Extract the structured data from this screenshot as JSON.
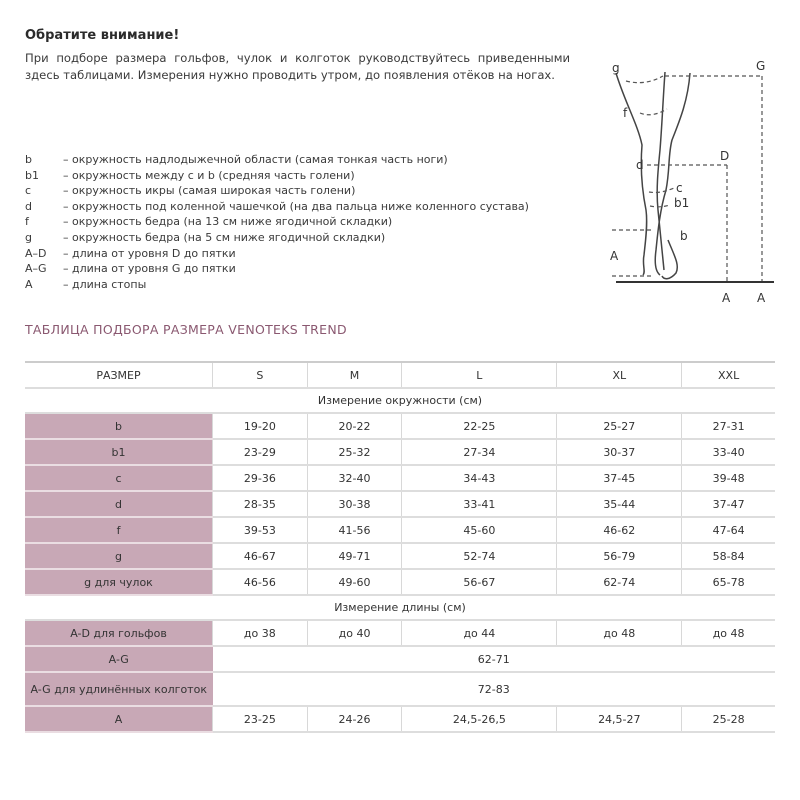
{
  "notice": {
    "title": "Обратите внимание!",
    "text": "При подборе размера гольфов, чулок и колготок руководствуйтесь приведенными здесь таблицами. Измерения нужно проводить утром, до появления отёков на ногах."
  },
  "legend": [
    {
      "key": "b",
      "text": "– окружность надлодыжечной области (самая тонкая часть ноги)"
    },
    {
      "key": "b1",
      "text": "– окружность между c и b (средняя часть голени)"
    },
    {
      "key": "c",
      "text": "– окружность икры (самая широкая часть голени)"
    },
    {
      "key": "d",
      "text": "– окружность под коленной чашечкой (на два пальца ниже коленного сустава)"
    },
    {
      "key": "f",
      "text": "– окружность бедра (на 13 см ниже ягодичной складки)"
    },
    {
      "key": "g",
      "text": "– окружность бедра (на 5 см ниже ягодичной складки)"
    },
    {
      "key": "A–D",
      "text": "– длина от уровня D до пятки"
    },
    {
      "key": "A–G",
      "text": "– длина от уровня G до пятки"
    },
    {
      "key": "A",
      "text": "– длина стопы"
    }
  ],
  "diagram": {
    "labels": {
      "g": "g",
      "f": "f",
      "d": "d",
      "c": "c",
      "b1": "b1",
      "b": "b",
      "A_left": "A",
      "D": "D",
      "G": "G",
      "A_d": "A",
      "A_g": "A"
    }
  },
  "table": {
    "title": "ТАБЛИЦА ПОДБОРА РАЗМЕРА VENOTEKS TREND",
    "colors": {
      "label_bg": "#c8a8b6",
      "title": "#8a5870"
    },
    "header": [
      "РАЗМЕР",
      "S",
      "M",
      "L",
      "XL",
      "XXL"
    ],
    "section_circumference": "Измерение окружности (см)",
    "circumference_rows": [
      {
        "label": "b",
        "values": [
          "19-20",
          "20-22",
          "22-25",
          "25-27",
          "27-31"
        ]
      },
      {
        "label": "b1",
        "values": [
          "23-29",
          "25-32",
          "27-34",
          "30-37",
          "33-40"
        ]
      },
      {
        "label": "c",
        "values": [
          "29-36",
          "32-40",
          "34-43",
          "37-45",
          "39-48"
        ]
      },
      {
        "label": "d",
        "values": [
          "28-35",
          "30-38",
          "33-41",
          "35-44",
          "37-47"
        ]
      },
      {
        "label": "f",
        "values": [
          "39-53",
          "41-56",
          "45-60",
          "46-62",
          "47-64"
        ]
      },
      {
        "label": "g",
        "values": [
          "46-67",
          "49-71",
          "52-74",
          "56-79",
          "58-84"
        ]
      },
      {
        "label": "g для чулок",
        "values": [
          "46-56",
          "49-60",
          "56-67",
          "62-74",
          "65-78"
        ]
      }
    ],
    "section_length": "Измерение длины (см)",
    "length_rows": [
      {
        "label": "A-D для гольфов",
        "values": [
          "до 38",
          "до 40",
          "до 44",
          "до 48",
          "до 48"
        ]
      },
      {
        "label": "A-G",
        "merged": "62-71"
      },
      {
        "label": "A-G для удлинённых колготок",
        "merged": "72-83"
      },
      {
        "label": "A",
        "values": [
          "23-25",
          "24-26",
          "24,5-26,5",
          "24,5-27",
          "25-28"
        ]
      }
    ]
  }
}
